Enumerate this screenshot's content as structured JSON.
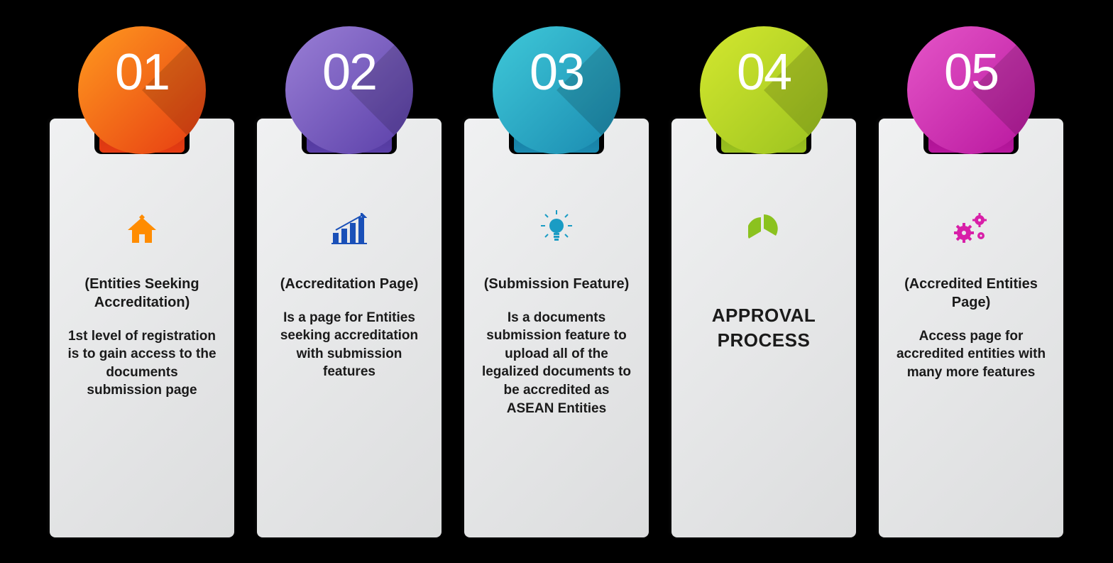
{
  "type": "infographic",
  "layout": "horizontal-steps",
  "background_color": "#000000",
  "card_gradient_from": "#f0f1f2",
  "card_gradient_to": "#dcddde",
  "number_color": "#ffffff",
  "number_fontsize": 72,
  "subtitle_fontsize": 20,
  "desc_fontsize": 19,
  "text_color": "#1a1a1a",
  "steps": [
    {
      "number": "01",
      "circle_gradient_from": "#ff9a1f",
      "circle_gradient_to": "#e63b12",
      "tab_lower_color": "#c73410",
      "icon": "home",
      "icon_color": "#ff8c00",
      "subtitle": "(Entities Seeking Accreditation)",
      "desc": "1st level of registration\nis to gain access to the documents submission page"
    },
    {
      "number": "02",
      "circle_gradient_from": "#9a7fd6",
      "circle_gradient_to": "#5a3fa8",
      "tab_lower_color": "#4a3390",
      "icon": "bar-chart",
      "icon_color": "#1a50b8",
      "subtitle": "(Accreditation Page)",
      "desc": "Is a page for Entities seeking accreditation with submission features"
    },
    {
      "number": "03",
      "circle_gradient_from": "#3fc9d9",
      "circle_gradient_to": "#1a8ab0",
      "tab_lower_color": "#167394",
      "icon": "lightbulb",
      "icon_color": "#1a9cc4",
      "subtitle": "(Submission Feature)",
      "desc": "Is a documents submission feature to upload all of the legalized documents to be accredited as ASEAN Entities"
    },
    {
      "number": "04",
      "circle_gradient_from": "#d4e82f",
      "circle_gradient_to": "#9bc21f",
      "tab_lower_color": "#84a61a",
      "icon": "pie",
      "icon_color": "#8bc21f",
      "subtitle": "",
      "desc": "",
      "big_title": "APPROVAL PROCESS"
    },
    {
      "number": "05",
      "circle_gradient_from": "#e556c8",
      "circle_gradient_to": "#b8169e",
      "tab_lower_color": "#9e1286",
      "icon": "gears",
      "icon_color": "#d81fa8",
      "subtitle": "(Accredited Entities Page)",
      "desc": "Access page for accredited entities with many more features"
    }
  ]
}
